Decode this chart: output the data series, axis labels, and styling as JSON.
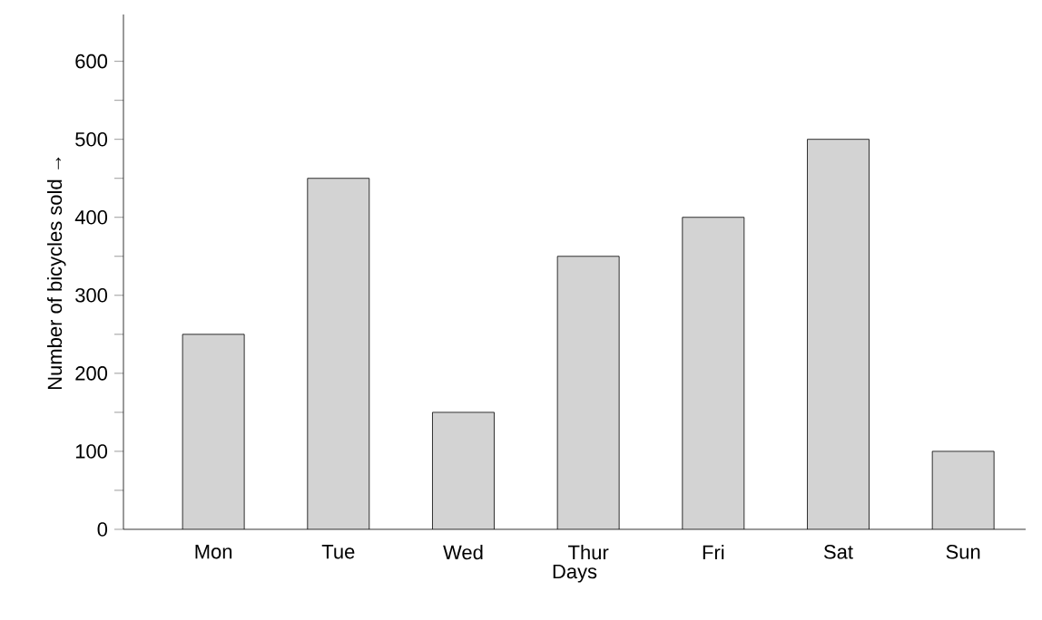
{
  "chart_data": {
    "type": "bar",
    "xlabel": "Days",
    "ylabel": "Number of bicycles sold →",
    "categories": [
      "Mon",
      "Tue",
      "Wed",
      "Thur",
      "Fri",
      "Sat",
      "Sun"
    ],
    "values": [
      250,
      450,
      150,
      350,
      400,
      500,
      100
    ],
    "color": "#d3d3d3",
    "ylim": [
      0,
      660
    ],
    "yticks": [
      0,
      {
        "value": 50,
        "label": null
      },
      100,
      {
        "value": 150,
        "label": null
      },
      200,
      {
        "value": 250,
        "label": null
      },
      300,
      {
        "value": 350,
        "label": null
      },
      400,
      {
        "value": 450,
        "label": null
      },
      500,
      {
        "value": 550,
        "label": null
      },
      600
    ],
    "grid": false
  }
}
